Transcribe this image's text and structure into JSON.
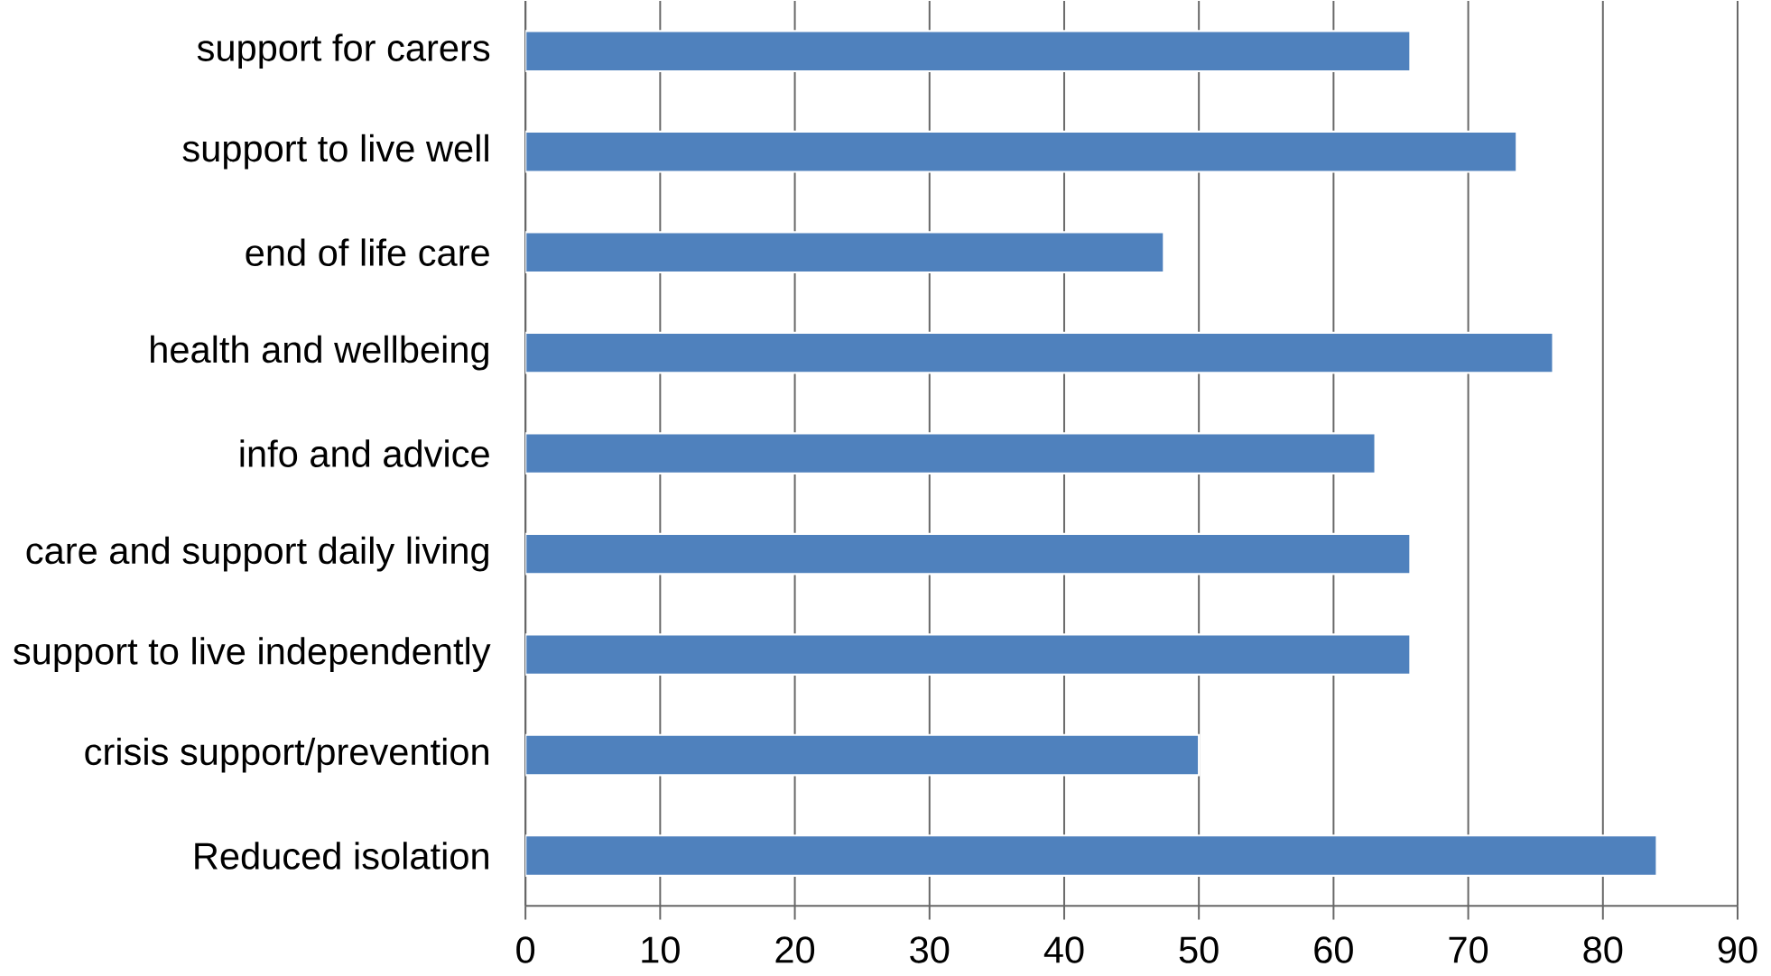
{
  "chart_data": {
    "type": "bar",
    "orientation": "horizontal",
    "categories": [
      "support for carers",
      "support to live well",
      "end of life care",
      "health and wellbeing",
      "info and advice",
      "care and support daily living",
      "support to live independently",
      "crisis support/prevention",
      "Reduced isolation"
    ],
    "values": [
      65.7,
      73.6,
      47.4,
      76.3,
      63.1,
      65.7,
      65.7,
      50,
      84.0
    ],
    "color": "#4f81bd",
    "xlim": [
      0,
      90
    ],
    "xticks": [
      0,
      10,
      20,
      30,
      40,
      50,
      60,
      70,
      80,
      90
    ],
    "grid": "x"
  }
}
